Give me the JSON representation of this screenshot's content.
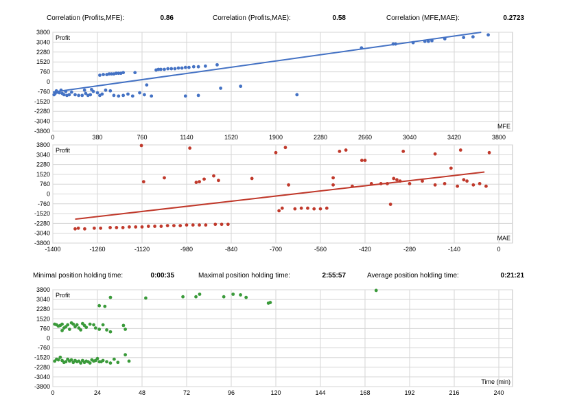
{
  "correlations": {
    "profits_mfe": {
      "label": "Correlation (Profits,MFE):",
      "value": "0.86"
    },
    "profits_mae": {
      "label": "Correlation (Profits,MAE):",
      "value": "0.58"
    },
    "mfe_mae": {
      "label": "Correlation (MFE,MAE):",
      "value": "0.2723"
    }
  },
  "holding": {
    "min": {
      "label": "Minimal position holding time:",
      "value": "0:00:35"
    },
    "max": {
      "label": "Maximal position holding time:",
      "value": "2:55:57"
    },
    "avg": {
      "label": "Average position holding time:",
      "value": "0:21:21"
    }
  },
  "colors": {
    "mfe": "#4472c4",
    "mae": "#c0392b",
    "time": "#3a9a3a",
    "grid": "#d6d6d6",
    "border": "#bfbfbf"
  },
  "chart_data": [
    {
      "type": "scatter",
      "title": "",
      "xlabel": "MFE",
      "ylabel": "Profit",
      "xlim": [
        0,
        3800
      ],
      "ylim": [
        -3800,
        3800
      ],
      "xticks": [
        0,
        380,
        760,
        1140,
        1520,
        1900,
        2280,
        2660,
        3040,
        3420,
        3800
      ],
      "yticks": [
        3800,
        3040,
        2280,
        1520,
        760,
        0,
        -760,
        -1520,
        -2280,
        -3040,
        -3800
      ],
      "grid": true,
      "color": "#4472c4",
      "trendline": {
        "x1": 0,
        "y1": -800,
        "x2": 3650,
        "y2": 3800
      },
      "points": [
        [
          10,
          -1000
        ],
        [
          20,
          -900
        ],
        [
          30,
          -700
        ],
        [
          40,
          -800
        ],
        [
          55,
          -850
        ],
        [
          70,
          -650
        ],
        [
          80,
          -900
        ],
        [
          95,
          -1000
        ],
        [
          110,
          -750
        ],
        [
          120,
          -1050
        ],
        [
          140,
          -1000
        ],
        [
          160,
          -800
        ],
        [
          190,
          -1000
        ],
        [
          220,
          -1050
        ],
        [
          250,
          -1050
        ],
        [
          280,
          -900
        ],
        [
          300,
          -1050
        ],
        [
          320,
          -1000
        ],
        [
          345,
          -750
        ],
        [
          380,
          -850
        ],
        [
          400,
          -1050
        ],
        [
          420,
          -950
        ],
        [
          450,
          -650
        ],
        [
          490,
          -700
        ],
        [
          520,
          -1050
        ],
        [
          560,
          -1100
        ],
        [
          600,
          -1050
        ],
        [
          640,
          -950
        ],
        [
          680,
          -1100
        ],
        [
          740,
          -850
        ],
        [
          780,
          -1000
        ],
        [
          840,
          -1100
        ],
        [
          1130,
          -1100
        ],
        [
          1240,
          -1050
        ],
        [
          1430,
          -500
        ],
        [
          1600,
          -350
        ],
        [
          2080,
          -1000
        ],
        [
          270,
          -650
        ],
        [
          330,
          -600
        ],
        [
          400,
          500
        ],
        [
          430,
          550
        ],
        [
          460,
          550
        ],
        [
          480,
          600
        ],
        [
          500,
          600
        ],
        [
          520,
          600
        ],
        [
          540,
          650
        ],
        [
          560,
          650
        ],
        [
          580,
          650
        ],
        [
          600,
          700
        ],
        [
          700,
          700
        ],
        [
          800,
          -250
        ],
        [
          880,
          900
        ],
        [
          900,
          950
        ],
        [
          920,
          950
        ],
        [
          950,
          950
        ],
        [
          980,
          1000
        ],
        [
          1010,
          1000
        ],
        [
          1040,
          1000
        ],
        [
          1070,
          1050
        ],
        [
          1100,
          1050
        ],
        [
          1130,
          1100
        ],
        [
          1160,
          1100
        ],
        [
          1200,
          1150
        ],
        [
          1240,
          1150
        ],
        [
          1300,
          1200
        ],
        [
          1400,
          1300
        ],
        [
          2630,
          2600
        ],
        [
          2900,
          2900
        ],
        [
          2920,
          2900
        ],
        [
          3070,
          3000
        ],
        [
          3170,
          3100
        ],
        [
          3200,
          3100
        ],
        [
          3230,
          3150
        ],
        [
          3340,
          3300
        ],
        [
          3500,
          3400
        ],
        [
          3580,
          3450
        ],
        [
          3710,
          3600
        ]
      ]
    },
    {
      "type": "scatter",
      "title": "",
      "xlabel": "MAE",
      "ylabel": "Profit",
      "xlim": [
        -1400,
        0
      ],
      "ylim": [
        -3800,
        3800
      ],
      "xticks": [
        -1400,
        -1260,
        -1120,
        -980,
        -840,
        -700,
        -560,
        -420,
        -280,
        -140,
        0
      ],
      "yticks": [
        3800,
        3040,
        2280,
        1520,
        760,
        0,
        -760,
        -1520,
        -2280,
        -3040,
        -3800
      ],
      "grid": true,
      "color": "#c0392b",
      "trendline": {
        "x1": -1330,
        "y1": -1950,
        "x2": -45,
        "y2": 1700
      },
      "points": [
        [
          -1330,
          -2700
        ],
        [
          -1320,
          -2650
        ],
        [
          -1300,
          -2700
        ],
        [
          -1270,
          -2650
        ],
        [
          -1250,
          -2650
        ],
        [
          -1220,
          -2600
        ],
        [
          -1200,
          -2600
        ],
        [
          -1180,
          -2600
        ],
        [
          -1160,
          -2550
        ],
        [
          -1140,
          -2550
        ],
        [
          -1120,
          -2550
        ],
        [
          -1100,
          -2500
        ],
        [
          -1080,
          -2500
        ],
        [
          -1060,
          -2500
        ],
        [
          -1040,
          -2450
        ],
        [
          -1020,
          -2450
        ],
        [
          -1000,
          -2450
        ],
        [
          -980,
          -2400
        ],
        [
          -960,
          -2400
        ],
        [
          -940,
          -2400
        ],
        [
          -920,
          -2400
        ],
        [
          -890,
          -2350
        ],
        [
          -870,
          -2350
        ],
        [
          -850,
          -2350
        ],
        [
          -1122,
          3750
        ],
        [
          -1115,
          950
        ],
        [
          -1050,
          1250
        ],
        [
          -970,
          3550
        ],
        [
          -950,
          900
        ],
        [
          -940,
          950
        ],
        [
          -925,
          1150
        ],
        [
          -895,
          1400
        ],
        [
          -880,
          1050
        ],
        [
          -775,
          1200
        ],
        [
          -700,
          3200
        ],
        [
          -690,
          -1300
        ],
        [
          -680,
          -1100
        ],
        [
          -670,
          3600
        ],
        [
          -660,
          700
        ],
        [
          -640,
          -1150
        ],
        [
          -620,
          -1100
        ],
        [
          -600,
          -1100
        ],
        [
          -580,
          -1150
        ],
        [
          -560,
          -1150
        ],
        [
          -540,
          -1100
        ],
        [
          -520,
          1250
        ],
        [
          -520,
          700
        ],
        [
          -500,
          3300
        ],
        [
          -480,
          3400
        ],
        [
          -460,
          600
        ],
        [
          -430,
          2600
        ],
        [
          -420,
          2600
        ],
        [
          -400,
          800
        ],
        [
          -370,
          800
        ],
        [
          -350,
          800
        ],
        [
          -340,
          -800
        ],
        [
          -330,
          1200
        ],
        [
          -320,
          1100
        ],
        [
          -310,
          1000
        ],
        [
          -280,
          800
        ],
        [
          -240,
          1000
        ],
        [
          -200,
          700
        ],
        [
          -170,
          800
        ],
        [
          -130,
          600
        ],
        [
          -120,
          3400
        ],
        [
          -110,
          1100
        ],
        [
          -100,
          1000
        ],
        [
          -80,
          700
        ],
        [
          -60,
          800
        ],
        [
          -40,
          600
        ],
        [
          -30,
          3200
        ],
        [
          -200,
          3100
        ],
        [
          -150,
          2000
        ],
        [
          -300,
          3300
        ]
      ]
    },
    {
      "type": "scatter",
      "title": "",
      "xlabel": "Time (min)",
      "ylabel": "Profit",
      "xlim": [
        0,
        240
      ],
      "ylim": [
        -3800,
        3800
      ],
      "xticks": [
        0,
        24,
        48,
        72,
        96,
        120,
        144,
        168,
        192,
        216,
        240
      ],
      "yticks": [
        3800,
        3040,
        2280,
        1520,
        760,
        0,
        -760,
        -1520,
        -2280,
        -3040,
        -3800
      ],
      "grid": true,
      "color": "#3a9a3a",
      "trendline": null,
      "points": [
        [
          1,
          1100
        ],
        [
          2,
          1050
        ],
        [
          3,
          950
        ],
        [
          4,
          1000
        ],
        [
          5,
          1100
        ],
        [
          5,
          600
        ],
        [
          6,
          800
        ],
        [
          7,
          900
        ],
        [
          8,
          1050
        ],
        [
          9,
          700
        ],
        [
          10,
          1200
        ],
        [
          11,
          1100
        ],
        [
          12,
          900
        ],
        [
          13,
          1050
        ],
        [
          14,
          800
        ],
        [
          15,
          650
        ],
        [
          16,
          1150
        ],
        [
          17,
          1000
        ],
        [
          18,
          850
        ],
        [
          20,
          1100
        ],
        [
          22,
          1050
        ],
        [
          23,
          800
        ],
        [
          25,
          700
        ],
        [
          27,
          1050
        ],
        [
          29,
          650
        ],
        [
          31,
          500
        ],
        [
          38,
          1000
        ],
        [
          39,
          700
        ],
        [
          1,
          -1800
        ],
        [
          2,
          -1650
        ],
        [
          3,
          -1700
        ],
        [
          4,
          -1500
        ],
        [
          5,
          -1750
        ],
        [
          6,
          -1900
        ],
        [
          7,
          -1850
        ],
        [
          8,
          -1650
        ],
        [
          9,
          -1800
        ],
        [
          10,
          -1700
        ],
        [
          11,
          -1900
        ],
        [
          12,
          -1750
        ],
        [
          13,
          -1850
        ],
        [
          14,
          -1800
        ],
        [
          15,
          -1950
        ],
        [
          16,
          -1750
        ],
        [
          17,
          -1900
        ],
        [
          18,
          -1800
        ],
        [
          19,
          -1850
        ],
        [
          20,
          -1950
        ],
        [
          21,
          -1700
        ],
        [
          22,
          -1800
        ],
        [
          23,
          -1750
        ],
        [
          24,
          -1600
        ],
        [
          25,
          -1850
        ],
        [
          26,
          -1850
        ],
        [
          27,
          -1750
        ],
        [
          29,
          -1850
        ],
        [
          31,
          -1950
        ],
        [
          33,
          -1650
        ],
        [
          35,
          -1900
        ],
        [
          39,
          -1300
        ],
        [
          41,
          -1800
        ],
        [
          25,
          2550
        ],
        [
          28,
          2500
        ],
        [
          31,
          3200
        ],
        [
          50,
          3150
        ],
        [
          70,
          3250
        ],
        [
          77,
          3250
        ],
        [
          79,
          3450
        ],
        [
          92,
          3250
        ],
        [
          97,
          3450
        ],
        [
          101,
          3400
        ],
        [
          104,
          3200
        ],
        [
          116,
          2750
        ],
        [
          117,
          2800
        ],
        [
          174,
          3750
        ]
      ]
    }
  ]
}
